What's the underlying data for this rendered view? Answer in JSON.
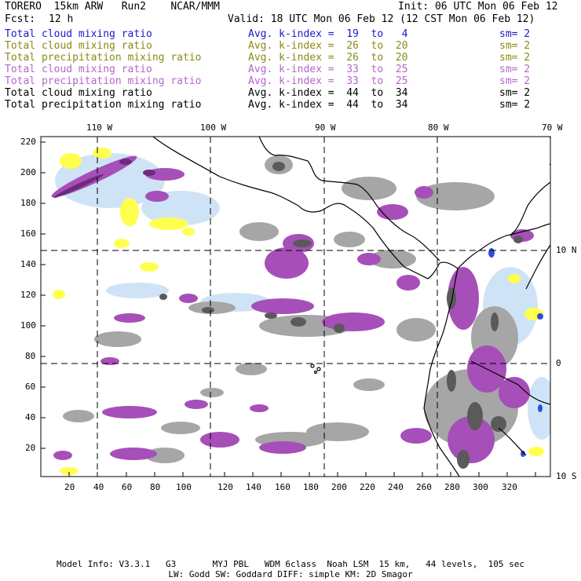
{
  "header": {
    "model": "TORERO  15km ARW   Run2    NCAR/MMM",
    "init": "Init: 06 UTC Mon 06 Feb 12",
    "fcst_label": "Fcst:",
    "fcst_value": "12 h",
    "valid": "Valid: 18 UTC Mon 06 Feb 12 (12 CST Mon 06 Feb 12)"
  },
  "legend": [
    {
      "field": "Total cloud mixing ratio",
      "kindex": "Avg. k-index =  19  to   4",
      "sm": "sm= 2",
      "color": "#1a1acc"
    },
    {
      "field": "Total cloud mixing ratio",
      "kindex": "Avg. k-index =  26  to  20",
      "sm": "sm= 2",
      "color": "#8a8a14"
    },
    {
      "field": "Total precipitation mixing ratio",
      "kindex": "Avg. k-index =  26  to  20",
      "sm": "sm= 2",
      "color": "#8a8a14"
    },
    {
      "field": "Total cloud mixing ratio",
      "kindex": "Avg. k-index =  33  to  25",
      "sm": "sm= 2",
      "color": "#b666c8"
    },
    {
      "field": "Total precipitation mixing ratio",
      "kindex": "Avg. k-index =  33  to  25",
      "sm": "sm= 2",
      "color": "#b666c8"
    },
    {
      "field": "Total cloud mixing ratio",
      "kindex": "Avg. k-index =  44  to  34",
      "sm": "sm= 2",
      "color": "#000000"
    },
    {
      "field": "Total precipitation mixing ratio",
      "kindex": "Avg. k-index =  44  to  34",
      "sm": "sm= 2",
      "color": "#000000"
    }
  ],
  "map": {
    "lon_labels": [
      "110 W",
      "100 W",
      "90 W",
      "80 W",
      "70 W"
    ],
    "lat_labels": [
      "10 N",
      "0",
      "10 S"
    ],
    "x_ticks": [
      "20",
      "40",
      "60",
      "80",
      "100",
      "120",
      "140",
      "160",
      "180",
      "200",
      "220",
      "240",
      "260",
      "280",
      "300",
      "320"
    ],
    "y_ticks": [
      "220",
      "200",
      "180",
      "160",
      "140",
      "120",
      "100",
      "80",
      "60",
      "40",
      "20"
    ],
    "colors": {
      "gray": "#a6a6a6",
      "darkgray": "#5a5a5a",
      "purple": "#a64fb8",
      "lightblue": "#cfe3f6",
      "yellow": "#ffff4d",
      "blue": "#2b4fd9",
      "darkpurple": "#6e2a7e"
    }
  },
  "footer": {
    "line1": "Model Info: V3.3.1   G3       MYJ PBL   WDM 6class  Noah LSM  15 km,   44 levels,  105 sec",
    "line2": "LW: Godd SW: Goddard DIFF: simple KM: 2D Smagor"
  }
}
